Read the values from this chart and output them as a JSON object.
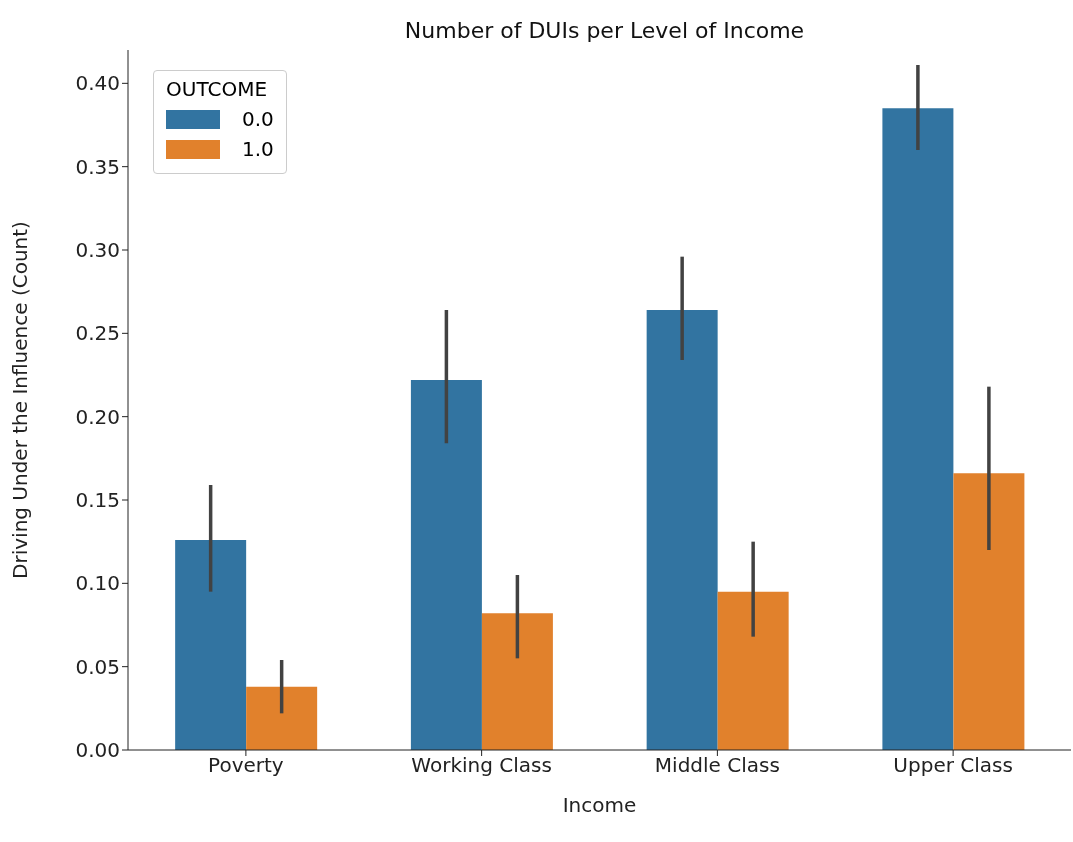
{
  "chart_data": {
    "type": "bar",
    "title": "Number of DUIs per Level of Income",
    "xlabel": "Income",
    "ylabel": "Driving Under the Influence (Count)",
    "legend_title": "OUTCOME",
    "categories": [
      "Poverty",
      "Working Class",
      "Middle Class",
      "Upper Class"
    ],
    "series": [
      {
        "name": "0.0",
        "color": "#3274a1",
        "values": [
          0.126,
          0.222,
          0.264,
          0.385
        ],
        "errors": [
          [
            0.095,
            0.159
          ],
          [
            0.184,
            0.264
          ],
          [
            0.234,
            0.296
          ],
          [
            0.36,
            0.411
          ]
        ]
      },
      {
        "name": "1.0",
        "color": "#e1812c",
        "values": [
          0.038,
          0.082,
          0.095,
          0.166
        ],
        "errors": [
          [
            0.022,
            0.054
          ],
          [
            0.055,
            0.105
          ],
          [
            0.068,
            0.125
          ],
          [
            0.12,
            0.218
          ]
        ]
      }
    ],
    "ylim": [
      0,
      0.42
    ],
    "yticks": [
      {
        "value": 0,
        "label": "0.00"
      },
      {
        "value": 0.05,
        "label": "0.05"
      },
      {
        "value": 0.1,
        "label": "0.10"
      },
      {
        "value": 0.15,
        "label": "0.15"
      },
      {
        "value": 0.2,
        "label": "0.20"
      },
      {
        "value": 0.25,
        "label": "0.25"
      },
      {
        "value": 0.3,
        "label": "0.30"
      },
      {
        "value": 0.35,
        "label": "0.35"
      },
      {
        "value": 0.4,
        "label": "0.40"
      }
    ],
    "grid": false,
    "legend": "top left"
  }
}
